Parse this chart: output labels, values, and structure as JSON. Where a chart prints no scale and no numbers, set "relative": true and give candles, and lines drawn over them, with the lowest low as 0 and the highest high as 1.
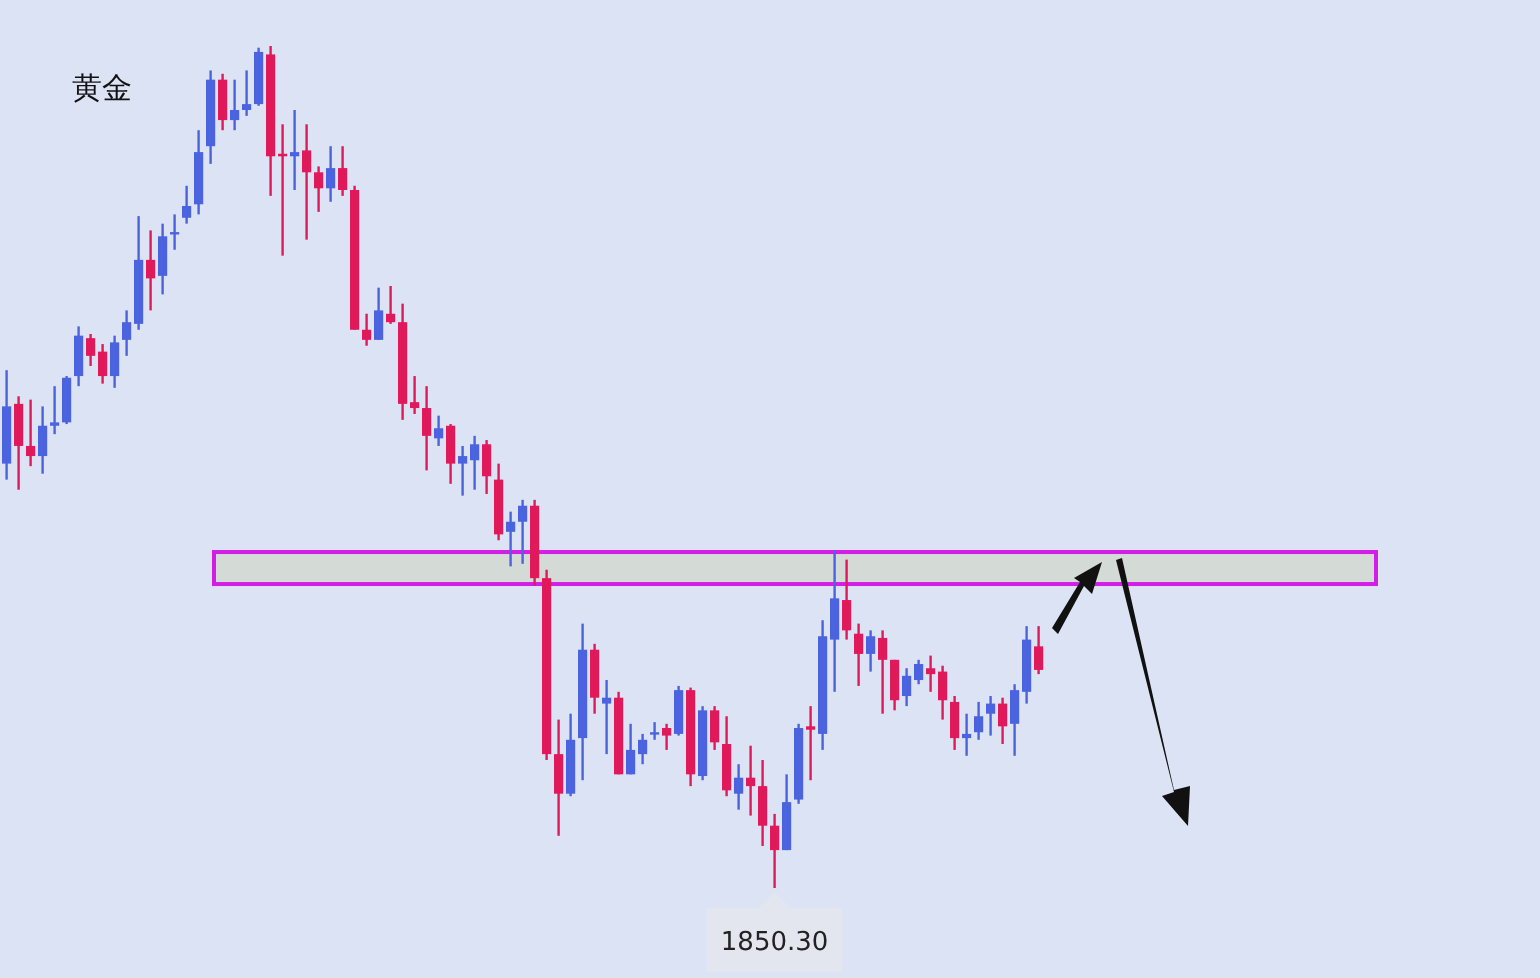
{
  "chart_data": {
    "type": "candlestick",
    "title": "黄金",
    "relative": true,
    "categories": [
      null,
      null,
      null,
      null,
      null,
      null,
      null,
      null,
      null,
      null,
      null,
      null,
      null,
      null,
      null,
      null,
      null,
      null,
      null,
      null,
      null,
      null,
      null,
      null,
      null,
      null,
      null,
      null,
      null,
      null,
      null,
      null,
      null,
      null,
      null,
      null,
      null,
      null,
      null,
      null,
      null,
      null,
      null,
      null,
      null,
      null,
      null,
      null,
      null,
      null,
      null,
      null,
      null,
      null,
      null,
      null,
      null,
      null,
      null,
      null,
      null,
      null,
      null,
      null,
      null,
      null,
      null,
      null,
      null,
      null,
      null,
      null,
      null,
      null,
      null,
      null,
      null,
      null,
      null,
      null,
      null,
      null,
      null,
      null,
      null,
      null,
      null
    ],
    "ohlc": [
      [
        0.504,
        0.615,
        0.485,
        0.572
      ],
      [
        0.575,
        0.584,
        0.473,
        0.525
      ],
      [
        0.525,
        0.58,
        0.501,
        0.513
      ],
      [
        0.513,
        0.572,
        0.492,
        0.549
      ],
      [
        0.549,
        0.596,
        0.539,
        0.553
      ],
      [
        0.553,
        0.608,
        0.551,
        0.606
      ],
      [
        0.608,
        0.667,
        0.596,
        0.656
      ],
      [
        0.653,
        0.658,
        0.62,
        0.632
      ],
      [
        0.637,
        0.646,
        0.599,
        0.608
      ],
      [
        0.608,
        0.656,
        0.594,
        0.648
      ],
      [
        0.651,
        0.686,
        0.632,
        0.672
      ],
      [
        0.67,
        0.798,
        0.663,
        0.746
      ],
      [
        0.746,
        0.781,
        0.686,
        0.724
      ],
      [
        0.727,
        0.789,
        0.705,
        0.774
      ],
      [
        0.777,
        0.8,
        0.758,
        0.779
      ],
      [
        0.796,
        0.834,
        0.789,
        0.81
      ],
      [
        0.812,
        0.9,
        0.8,
        0.874
      ],
      [
        0.881,
        0.971,
        0.86,
        0.96
      ],
      [
        0.96,
        0.967,
        0.9,
        0.912
      ],
      [
        0.912,
        0.96,
        0.9,
        0.924
      ],
      [
        0.924,
        0.971,
        0.917,
        0.931
      ],
      [
        0.931,
        0.998,
        0.929,
        0.993
      ],
      [
        0.99,
        1,
        0.822,
        0.869
      ],
      [
        0.872,
        0.907,
        0.751,
        0.869
      ],
      [
        0.869,
        0.924,
        0.829,
        0.874
      ],
      [
        0.876,
        0.907,
        0.77,
        0.85
      ],
      [
        0.85,
        0.857,
        0.803,
        0.831
      ],
      [
        0.831,
        0.881,
        0.815,
        0.855
      ],
      [
        0.855,
        0.881,
        0.822,
        0.829
      ],
      [
        0.829,
        0.834,
        0.663,
        0.663
      ],
      [
        0.663,
        0.682,
        0.644,
        0.651
      ],
      [
        0.651,
        0.713,
        0.651,
        0.686
      ],
      [
        0.682,
        0.715,
        0.67,
        0.672
      ],
      [
        0.672,
        0.694,
        0.556,
        0.575
      ],
      [
        0.577,
        0.608,
        0.563,
        0.57
      ],
      [
        0.57,
        0.596,
        0.496,
        0.537
      ],
      [
        0.534,
        0.561,
        0.525,
        0.546
      ],
      [
        0.549,
        0.551,
        0.48,
        0.504
      ],
      [
        0.504,
        0.525,
        0.466,
        0.513
      ],
      [
        0.508,
        0.537,
        0.473,
        0.527
      ],
      [
        0.527,
        0.532,
        0.468,
        0.489
      ],
      [
        0.485,
        0.504,
        0.413,
        0.42
      ],
      [
        0.423,
        0.447,
        0.382,
        0.435
      ],
      [
        0.435,
        0.461,
        0.385,
        0.454
      ],
      [
        0.454,
        0.461,
        0.359,
        0.368
      ],
      [
        0.368,
        0.378,
        0.152,
        0.159
      ],
      [
        0.159,
        0.2,
        0.062,
        0.112
      ],
      [
        0.112,
        0.207,
        0.109,
        0.176
      ],
      [
        0.178,
        0.314,
        0.128,
        0.283
      ],
      [
        0.283,
        0.29,
        0.207,
        0.226
      ],
      [
        0.219,
        0.247,
        0.159,
        0.226
      ],
      [
        0.226,
        0.233,
        0.135,
        0.135
      ],
      [
        0.135,
        0.195,
        0.135,
        0.164
      ],
      [
        0.159,
        0.183,
        0.147,
        0.176
      ],
      [
        0.183,
        0.197,
        0.176,
        0.185
      ],
      [
        0.19,
        0.195,
        0.164,
        0.181
      ],
      [
        0.183,
        0.24,
        0.181,
        0.235
      ],
      [
        0.235,
        0.238,
        0.121,
        0.135
      ],
      [
        0.133,
        0.216,
        0.128,
        0.211
      ],
      [
        0.211,
        0.216,
        0.164,
        0.173
      ],
      [
        0.171,
        0.204,
        0.109,
        0.116
      ],
      [
        0.112,
        0.147,
        0.093,
        0.131
      ],
      [
        0.131,
        0.169,
        0.086,
        0.121
      ],
      [
        0.121,
        0.152,
        0.05,
        0.074
      ],
      [
        0.074,
        0.088,
        0,
        0.045
      ],
      [
        0.045,
        0.135,
        0.045,
        0.102
      ],
      [
        0.105,
        0.195,
        0.1,
        0.19
      ],
      [
        0.192,
        0.216,
        0.128,
        0.188
      ],
      [
        0.183,
        0.318,
        0.164,
        0.299
      ],
      [
        0.295,
        0.401,
        0.233,
        0.344
      ],
      [
        0.342,
        0.39,
        0.295,
        0.306
      ],
      [
        0.302,
        0.314,
        0.24,
        0.278
      ],
      [
        0.278,
        0.306,
        0.257,
        0.299
      ],
      [
        0.297,
        0.306,
        0.207,
        0.271
      ],
      [
        0.271,
        0.271,
        0.211,
        0.223
      ],
      [
        0.228,
        0.261,
        0.216,
        0.252
      ],
      [
        0.247,
        0.271,
        0.242,
        0.266
      ],
      [
        0.261,
        0.276,
        0.233,
        0.254
      ],
      [
        0.257,
        0.264,
        0.2,
        0.223
      ],
      [
        0.221,
        0.228,
        0.164,
        0.178
      ],
      [
        0.178,
        0.207,
        0.157,
        0.183
      ],
      [
        0.185,
        0.221,
        0.176,
        0.204
      ],
      [
        0.207,
        0.228,
        0.181,
        0.219
      ],
      [
        0.219,
        0.226,
        0.171,
        0.192
      ],
      [
        0.195,
        0.242,
        0.157,
        0.235
      ],
      [
        0.233,
        0.311,
        0.219,
        0.295
      ],
      [
        0.287,
        0.311,
        0.254,
        0.259
      ]
    ],
    "colors": [
      "#4c63e0",
      "#e0195a",
      "#e0195a",
      "#4c63e0",
      "#4c63e0",
      "#4c63e0",
      "#4c63e0",
      "#e0195a",
      "#e0195a",
      "#4c63e0",
      "#4c63e0",
      "#4c63e0",
      "#e0195a",
      "#4c63e0",
      "#4c63e0",
      "#4c63e0",
      "#4c63e0",
      "#4c63e0",
      "#e0195a",
      "#4c63e0",
      "#4c63e0",
      "#4c63e0",
      "#e0195a",
      "#e0195a",
      "#4c63e0",
      "#e0195a",
      "#e0195a",
      "#4c63e0",
      "#e0195a",
      "#e0195a",
      "#e0195a",
      "#4c63e0",
      "#e0195a",
      "#e0195a",
      "#e0195a",
      "#e0195a",
      "#4c63e0",
      "#e0195a",
      "#4c63e0",
      "#4c63e0",
      "#e0195a",
      "#e0195a",
      "#4c63e0",
      "#4c63e0",
      "#e0195a",
      "#e0195a",
      "#e0195a",
      "#4c63e0",
      "#4c63e0",
      "#e0195a",
      "#4c63e0",
      "#e0195a",
      "#4c63e0",
      "#4c63e0",
      "#4c63e0",
      "#e0195a",
      "#4c63e0",
      "#e0195a",
      "#4c63e0",
      "#e0195a",
      "#e0195a",
      "#4c63e0",
      "#e0195a",
      "#e0195a",
      "#e0195a",
      "#4c63e0",
      "#4c63e0",
      "#e0195a",
      "#4c63e0",
      "#4c63e0",
      "#e0195a",
      "#e0195a",
      "#4c63e0",
      "#e0195a",
      "#e0195a",
      "#4c63e0",
      "#4c63e0",
      "#e0195a",
      "#e0195a",
      "#e0195a",
      "#4c63e0",
      "#4c63e0",
      "#4c63e0",
      "#e0195a",
      "#4c63e0",
      "#4c63e0",
      "#e0195a"
    ],
    "bands": [
      {
        "axis": "y",
        "from": 0.361,
        "to": 0.399,
        "color": "#d4dad6"
      }
    ],
    "annotations": [
      {
        "text": "1850.30",
        "y": 0
      }
    ]
  }
}
